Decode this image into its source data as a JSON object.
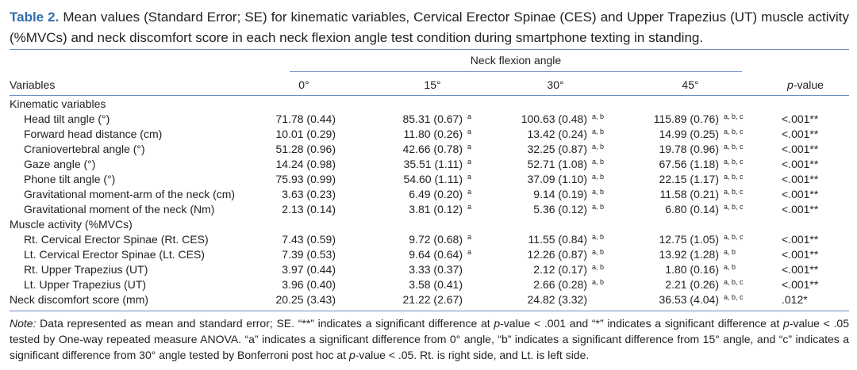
{
  "caption": {
    "label": "Table 2.",
    "text": "Mean values (Standard Error; SE) for kinematic variables, Cervical Erector Spinae (CES) and Upper Trapezius (UT) muscle activity (%MVCs) and neck discomfort score in each neck flexion angle test condition during smartphone texting in standing."
  },
  "table": {
    "spanner": "Neck flexion angle",
    "header": [
      "Variables",
      "0°",
      "15°",
      "30°",
      "45°",
      {
        "italic": "p",
        "text": "-value"
      }
    ],
    "body": [
      {
        "title": "Kinematic variables",
        "rows": [
          {
            "label": "Head tilt angle (°)",
            "cells": [
              {
                "v": "71.78 (0.44)"
              },
              {
                "v": "85.31 (0.67)",
                "sup": "a"
              },
              {
                "v": "100.63 (0.48)",
                "sup": "a, b"
              },
              {
                "v": "115.89 (0.76)",
                "sup": "a, b, c"
              }
            ],
            "p": "<.001**"
          },
          {
            "label": "Forward head distance (cm)",
            "cells": [
              {
                "v": "10.01 (0.29)"
              },
              {
                "v": "11.80 (0.26)",
                "sup": "a"
              },
              {
                "v": "13.42 (0.24)",
                "sup": "a, b"
              },
              {
                "v": "14.99 (0.25)",
                "sup": "a, b, c"
              }
            ],
            "p": "<.001**"
          },
          {
            "label": "Craniovertebral angle (°)",
            "cells": [
              {
                "v": "51.28 (0.96)"
              },
              {
                "v": "42.66 (0.78)",
                "sup": "a"
              },
              {
                "v": "32.25 (0.87)",
                "sup": "a, b"
              },
              {
                "v": "19.78 (0.96)",
                "sup": "a, b, c"
              }
            ],
            "p": "<.001**"
          },
          {
            "label": "Gaze angle (°)",
            "cells": [
              {
                "v": "14.24 (0.98)"
              },
              {
                "v": "35.51 (1.11)",
                "sup": "a"
              },
              {
                "v": "52.71 (1.08)",
                "sup": "a, b"
              },
              {
                "v": "67.56 (1.18)",
                "sup": "a, b, c"
              }
            ],
            "p": "<.001**"
          },
          {
            "label": "Phone tilt angle (°)",
            "cells": [
              {
                "v": "75.93 (0.99)"
              },
              {
                "v": "54.60 (1.11)",
                "sup": "a"
              },
              {
                "v": "37.09 (1.10)",
                "sup": "a, b"
              },
              {
                "v": "22.15 (1.17)",
                "sup": "a, b, c"
              }
            ],
            "p": "<.001**"
          },
          {
            "label": "Gravitational moment-arm of the neck (cm)",
            "cells": [
              {
                "v": "3.63 (0.23)"
              },
              {
                "v": "6.49 (0.20)",
                "sup": "a"
              },
              {
                "v": "9.14 (0.19)",
                "sup": "a, b"
              },
              {
                "v": "11.58 (0.21)",
                "sup": "a, b, c"
              }
            ],
            "p": "<.001**"
          },
          {
            "label": "Gravitational moment of the neck (Nm)",
            "cells": [
              {
                "v": "2.13 (0.14)"
              },
              {
                "v": "3.81 (0.12)",
                "sup": "a"
              },
              {
                "v": "5.36 (0.12)",
                "sup": "a, b"
              },
              {
                "v": "6.80 (0.14)",
                "sup": "a, b, c"
              }
            ],
            "p": "<.001**"
          }
        ]
      },
      {
        "title": "Muscle activity (%MVCs)",
        "rows": [
          {
            "label": "Rt. Cervical Erector Spinae (Rt. CES)",
            "cells": [
              {
                "v": "7.43 (0.59)"
              },
              {
                "v": "9.72 (0.68)",
                "sup": "a"
              },
              {
                "v": "11.55 (0.84)",
                "sup": "a, b"
              },
              {
                "v": "12.75 (1.05)",
                "sup": "a, b, c"
              }
            ],
            "p": "<.001**"
          },
          {
            "label": "Lt. Cervical Erector Spinae (Lt. CES)",
            "cells": [
              {
                "v": "7.39 (0.53)"
              },
              {
                "v": "9.64 (0.64)",
                "sup": "a"
              },
              {
                "v": "12.26 (0.87)",
                "sup": "a, b"
              },
              {
                "v": "13.92 (1.28)",
                "sup": "a, b"
              }
            ],
            "p": "<.001**"
          },
          {
            "label": "Rt. Upper Trapezius (UT)",
            "cells": [
              {
                "v": "3.97 (0.44)"
              },
              {
                "v": "3.33 (0.37)"
              },
              {
                "v": "2.12 (0.17)",
                "sup": "a, b"
              },
              {
                "v": "1.80 (0.16)",
                "sup": "a, b"
              }
            ],
            "p": "<.001**"
          },
          {
            "label": "Lt. Upper Trapezius (UT)",
            "cells": [
              {
                "v": "3.96 (0.40)"
              },
              {
                "v": "3.58 (0.41)"
              },
              {
                "v": "2.66 (0.28)",
                "sup": "a, b"
              },
              {
                "v": "2.21 (0.26)",
                "sup": "a, b, c"
              }
            ],
            "p": "<.001**"
          }
        ]
      },
      {
        "rows": [
          {
            "label": "Neck discomfort score (mm)",
            "cells": [
              {
                "v": "20.25 (3.43)"
              },
              {
                "v": "21.22 (2.67)"
              },
              {
                "v": "24.82 (3.32)"
              },
              {
                "v": "36.53 (4.04)",
                "sup": "a, b, c"
              }
            ],
            "p": ".012*"
          }
        ]
      }
    ]
  },
  "note": [
    {
      "text": "Note:",
      "italic": true
    },
    {
      "text": " Data represented as mean and standard error; SE. “**” indicates a significant difference at "
    },
    {
      "text": "p",
      "italic": true
    },
    {
      "text": "-value < .001 and “*” indicates a significant difference at "
    },
    {
      "text": "p",
      "italic": true
    },
    {
      "text": "-value < .05 tested by One-way repeated measure ANOVA. “a” indicates a significant difference from 0° angle, “b” indicates a significant difference from 15° angle, and “c” indicates a significant difference from 30° angle tested by Bonferroni post hoc at "
    },
    {
      "text": "p",
      "italic": true
    },
    {
      "text": "-value < .05. Rt. is right side, and Lt. is left side."
    }
  ]
}
